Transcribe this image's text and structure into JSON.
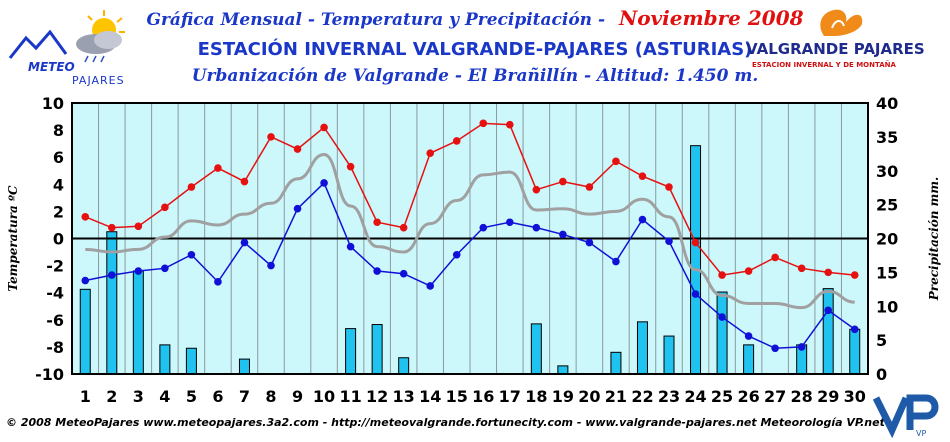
{
  "header": {
    "title_prefix": "Gráfica Mensual - Temperatura y Precipitación -",
    "title_month": "Noviembre 2008",
    "station": "ESTACIÓN INVERNAL VALGRANDE-PAJARES (ASTURIAS)",
    "location": "Urbanización de Valgrande - El Brañillín - Altitud: 1.450 m."
  },
  "logos": {
    "left_line1": "METEO",
    "left_line2": "PAJARES",
    "right_line1": "VALGRANDE PAJARES",
    "right_line2": "ESTACION INVERNAL Y DE MONTAÑA",
    "corner": "VP"
  },
  "footer": "© 2008 MeteoPajares www.meteopajares.3a2.com - http://meteovalgrande.fortunecity.com - www.valgrande-pajares.net Meteorología VP.net",
  "colors": {
    "plot_bg": "#ccf7fb",
    "bar": "#20c3ef",
    "max_line": "#e61010",
    "min_line": "#1010d8",
    "avg_line": "#a0a0a0"
  },
  "chart_data": {
    "type": "bar+line",
    "x": [
      1,
      2,
      3,
      4,
      5,
      6,
      7,
      8,
      9,
      10,
      11,
      12,
      13,
      14,
      15,
      16,
      17,
      18,
      19,
      20,
      21,
      22,
      23,
      24,
      25,
      26,
      27,
      28,
      29,
      30
    ],
    "ylabel_left": "Temperatura ºC",
    "ylabel_right": "Precipitación mm.",
    "ylim_left": [
      -10,
      10
    ],
    "ylim_right": [
      0,
      40
    ],
    "yticks_left": [
      10,
      8,
      6,
      4,
      2,
      0,
      -2,
      -4,
      -6,
      -8,
      -10
    ],
    "yticks_right": [
      40,
      35,
      30,
      25,
      20,
      15,
      10,
      5,
      0
    ],
    "grid": "vertical",
    "series": [
      {
        "kind": "bar",
        "axis": "right",
        "values": [
          12.5,
          21,
          15.2,
          4.3,
          3.8,
          0,
          2.2,
          0,
          0,
          0,
          6.7,
          7.3,
          2.4,
          0,
          0,
          0,
          0,
          7.4,
          1.2,
          0,
          3.2,
          7.7,
          5.6,
          33.7,
          12.1,
          4.3,
          0,
          4.3,
          12.6,
          6.6
        ]
      },
      {
        "kind": "line",
        "axis": "left",
        "values": [
          1.6,
          0.8,
          0.9,
          2.3,
          3.8,
          5.2,
          4.2,
          7.5,
          6.6,
          8.2,
          5.3,
          1.2,
          0.8,
          6.3,
          7.2,
          8.5,
          8.4,
          3.6,
          4.2,
          3.8,
          5.7,
          4.6,
          3.8,
          -0.3,
          -2.7,
          -2.4,
          -1.4,
          -2.2,
          -2.5,
          -2.7
        ]
      },
      {
        "kind": "line",
        "axis": "left",
        "values": [
          -3.1,
          -2.7,
          -2.4,
          -2.2,
          -1.2,
          -3.2,
          -0.3,
          -2.0,
          2.2,
          4.1,
          -0.6,
          -2.4,
          -2.6,
          -3.5,
          -1.2,
          0.8,
          1.2,
          0.8,
          0.3,
          -0.3,
          -1.7,
          1.4,
          -0.2,
          -4.1,
          -5.8,
          -7.2,
          -8.1,
          -8.0,
          -5.3,
          -6.7
        ]
      },
      {
        "kind": "smooth",
        "axis": "left",
        "values": [
          -0.8,
          -1.0,
          -0.8,
          0.1,
          1.3,
          1.0,
          1.8,
          2.6,
          4.4,
          6.2,
          2.4,
          -0.6,
          -1.0,
          1.1,
          2.8,
          4.7,
          4.9,
          2.1,
          2.2,
          1.8,
          2.0,
          2.9,
          1.6,
          -2.3,
          -4.2,
          -4.8,
          -4.8,
          -5.1,
          -3.9,
          -4.7
        ]
      }
    ]
  }
}
